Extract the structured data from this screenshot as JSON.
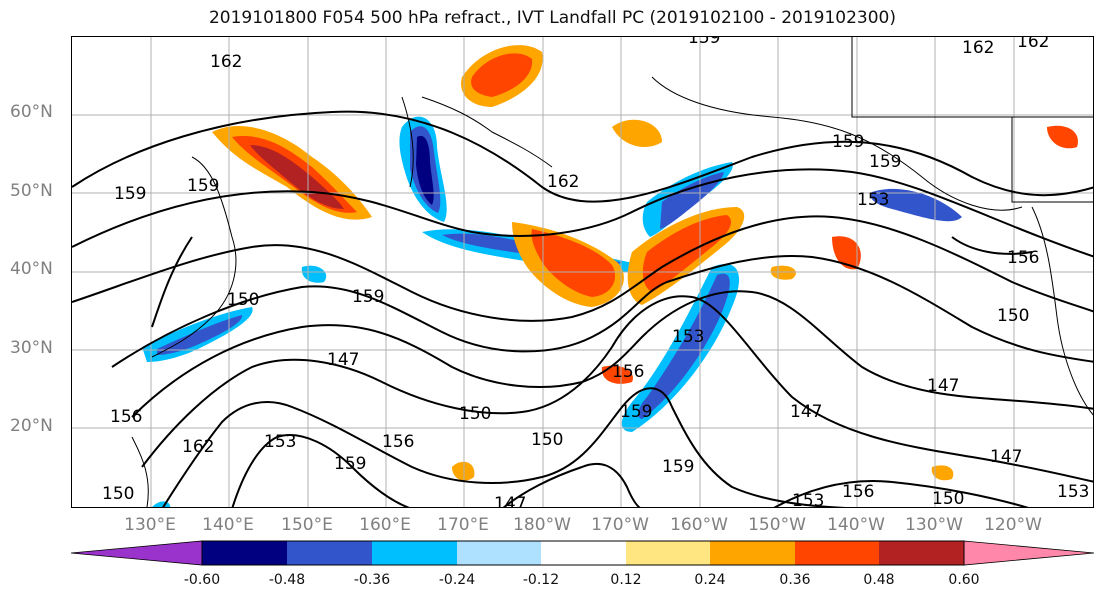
{
  "title": "2019101800 F054 500 hPa refract., IVT Landfall PC (2019102100 - 2019102300)",
  "lat_labels": [
    "60°N",
    "50°N",
    "40°N",
    "30°N",
    "20°N"
  ],
  "lon_labels": [
    "130°E",
    "140°E",
    "150°E",
    "160°E",
    "170°E",
    "180°W",
    "170°W",
    "160°W",
    "150°W",
    "140°W",
    "130°W",
    "120°W"
  ],
  "contour_labels": [
    {
      "text": "162"
    },
    {
      "text": "159"
    },
    {
      "text": "162"
    },
    {
      "text": "162"
    },
    {
      "text": "159"
    },
    {
      "text": "159"
    },
    {
      "text": "162"
    },
    {
      "text": "159"
    },
    {
      "text": "159"
    },
    {
      "text": "153"
    },
    {
      "text": "156"
    },
    {
      "text": "150"
    },
    {
      "text": "159"
    },
    {
      "text": "150"
    },
    {
      "text": "147"
    },
    {
      "text": "153"
    },
    {
      "text": "156"
    },
    {
      "text": "147"
    },
    {
      "text": "147"
    },
    {
      "text": "150"
    },
    {
      "text": "162"
    },
    {
      "text": "153"
    },
    {
      "text": "156"
    },
    {
      "text": "159"
    },
    {
      "text": "150"
    },
    {
      "text": "147"
    },
    {
      "text": "153"
    },
    {
      "text": "156"
    },
    {
      "text": "150"
    },
    {
      "text": "147"
    },
    {
      "text": "153"
    },
    {
      "text": "156"
    },
    {
      "text": "159"
    },
    {
      "text": "159"
    },
    {
      "text": "150"
    }
  ],
  "colorbar": {
    "colors": [
      "#9933cc",
      "#000080",
      "#3355cc",
      "#00bfff",
      "#aee0ff",
      "#ffffff",
      "#ffe680",
      "#ffa500",
      "#ff4500",
      "#b22222",
      "#ff88aa"
    ],
    "tick_labels": [
      "-0.60",
      "-0.48",
      "-0.36",
      "-0.24",
      "-0.12",
      "0.12",
      "0.24",
      "0.36",
      "0.48",
      "0.60"
    ]
  },
  "colors": {
    "grid": "#b0b0b0",
    "contour": "#000000",
    "axis_label": "#808080"
  }
}
